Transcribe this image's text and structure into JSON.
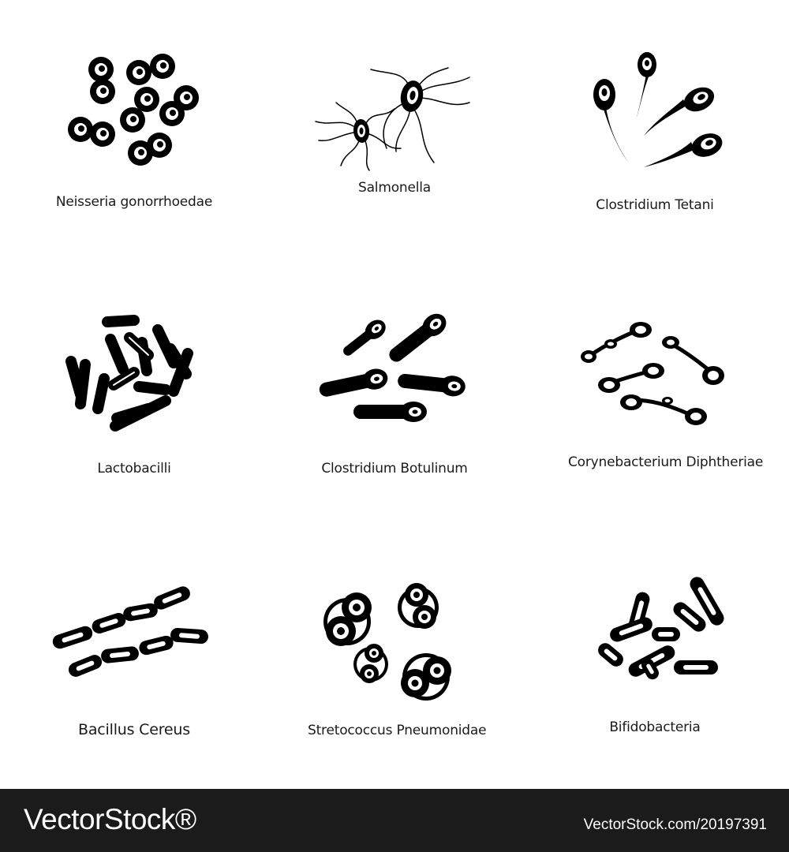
{
  "icons": [
    {
      "name": "Neisseria gonorrhoedae",
      "icon": "neisseria-icon"
    },
    {
      "name": "Salmonella",
      "icon": "salmonella-icon"
    },
    {
      "name": "Clostridium Tetani",
      "icon": "clostridium-tetani-icon"
    },
    {
      "name": "Lactobacilli",
      "icon": "lactobacilli-icon"
    },
    {
      "name": "Clostridium Botulinum",
      "icon": "clostridium-botulinum-icon"
    },
    {
      "name": "Corynebacterium Diphtheriae",
      "icon": "corynebacterium-icon"
    },
    {
      "name": "Bacillus Cereus",
      "icon": "bacillus-cereus-icon"
    },
    {
      "name": "Stretococcus Pneumonidae",
      "icon": "streptococcus-icon"
    },
    {
      "name": "Bifidobacteria",
      "icon": "bifidobacteria-icon"
    }
  ],
  "footer": {
    "brand": "VectorStock®",
    "image_id": "VectorStock.com/20197391"
  },
  "colors": {
    "background": "#ffffff",
    "icon": "#000000",
    "footer": "#1b1b1b",
    "footer_text": "#ffffff"
  }
}
